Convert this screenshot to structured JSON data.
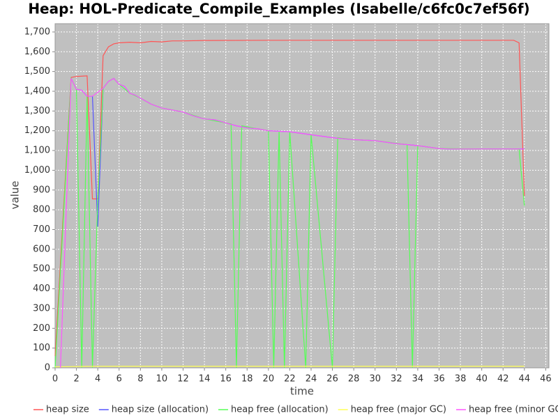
{
  "chart_data": {
    "type": "line",
    "title": "Heap: HOL-Predicate_Compile_Examples (Isabelle/c6fc0c7ef56f)",
    "x_label": "time",
    "y_label": "value",
    "xlim": [
      0,
      46.3
    ],
    "ylim": [
      0,
      1742
    ],
    "xticks": [
      0,
      2,
      4,
      6,
      8,
      10,
      12,
      14,
      16,
      18,
      20,
      22,
      24,
      26,
      28,
      30,
      32,
      34,
      36,
      38,
      40,
      42,
      44,
      46
    ],
    "yticks": [
      0,
      100,
      200,
      300,
      400,
      500,
      600,
      700,
      800,
      900,
      {
        "value": 1000,
        "label": "1,000"
      },
      {
        "value": 1100,
        "label": "1,100"
      },
      {
        "value": 1200,
        "label": "1,200"
      },
      {
        "value": 1300,
        "label": "1,300"
      },
      {
        "value": 1400,
        "label": "1,400"
      },
      {
        "value": 1500,
        "label": "1,500"
      },
      {
        "value": 1600,
        "label": "1,600"
      },
      {
        "value": 1700,
        "label": "1,700"
      }
    ],
    "grid": true,
    "legend": "bottom",
    "series": [
      {
        "name": "heap size",
        "color": "#ff5555",
        "x": [
          0,
          1.5,
          2,
          3,
          3.5,
          4,
          4.5,
          5,
          5.5,
          6,
          7,
          8,
          9,
          10,
          11,
          12,
          14,
          20,
          30,
          40,
          43,
          43.5,
          44
        ],
        "values": [
          60,
          1470,
          1475,
          1478,
          855,
          855,
          1580,
          1625,
          1640,
          1645,
          1648,
          1645,
          1652,
          1650,
          1655,
          1655,
          1657,
          1658,
          1658,
          1658,
          1658,
          1645,
          870
        ]
      },
      {
        "name": "heap size (allocation)",
        "color": "#5555ff",
        "x": [
          1.5,
          2,
          2.5,
          3,
          3.5,
          4,
          4.5,
          5,
          5.5,
          6,
          6.5,
          7,
          7.5,
          8,
          9,
          10,
          11,
          12,
          13,
          14,
          15,
          16,
          17,
          18,
          19,
          20,
          22,
          24,
          26,
          28,
          30,
          32,
          34,
          36,
          37,
          40,
          44
        ],
        "values": [
          1465,
          1410,
          1405,
          1375,
          1375,
          715,
          1415,
          1450,
          1465,
          1435,
          1425,
          1390,
          1380,
          1365,
          1335,
          1315,
          1305,
          1295,
          1275,
          1260,
          1255,
          1240,
          1225,
          1215,
          1210,
          1200,
          1195,
          1180,
          1165,
          1155,
          1150,
          1135,
          1125,
          1110,
          1108,
          1108,
          1108
        ]
      },
      {
        "name": "heap free (allocation)",
        "color": "#55ff55",
        "x": [
          0,
          1.5,
          2,
          2.5,
          3,
          3.5,
          4,
          4.5,
          5,
          5.5,
          6,
          7,
          8,
          9,
          10,
          12,
          14,
          16.5,
          17,
          17.5,
          20,
          20.5,
          21,
          21.5,
          22,
          23.5,
          24,
          26,
          26.5,
          28,
          30,
          33,
          33.5,
          34,
          36,
          40,
          43.5,
          44
        ],
        "values": [
          0,
          1465,
          1410,
          0,
          1375,
          0,
          850,
          1415,
          1450,
          1465,
          1435,
          1390,
          1365,
          1335,
          1315,
          1295,
          1260,
          1235,
          0,
          1225,
          1200,
          0,
          1198,
          0,
          1195,
          0,
          1180,
          0,
          1165,
          1155,
          1150,
          1130,
          0,
          1125,
          1110,
          1108,
          1108,
          820
        ]
      },
      {
        "name": "heap free (major GC)",
        "color": "#ffff55",
        "x": [
          0,
          4,
          44
        ],
        "values": [
          5,
          8,
          8
        ]
      },
      {
        "name": "heap free (minor GC)",
        "color": "#ff55ff",
        "x": [
          0.5,
          1.5,
          2,
          2.5,
          3,
          3.5,
          4.5,
          5,
          5.5,
          6,
          6.5,
          7,
          7.5,
          8,
          9,
          10,
          11,
          12,
          13,
          14,
          15,
          16,
          17,
          18,
          19,
          20,
          22,
          24,
          26,
          28,
          30,
          32,
          34,
          36,
          37,
          40,
          44
        ],
        "values": [
          0,
          1465,
          1410,
          1405,
          1375,
          1375,
          1415,
          1450,
          1465,
          1435,
          1425,
          1390,
          1380,
          1365,
          1335,
          1315,
          1305,
          1295,
          1275,
          1260,
          1255,
          1240,
          1225,
          1215,
          1210,
          1200,
          1195,
          1180,
          1165,
          1155,
          1150,
          1135,
          1125,
          1110,
          1108,
          1108,
          1108
        ]
      }
    ]
  }
}
